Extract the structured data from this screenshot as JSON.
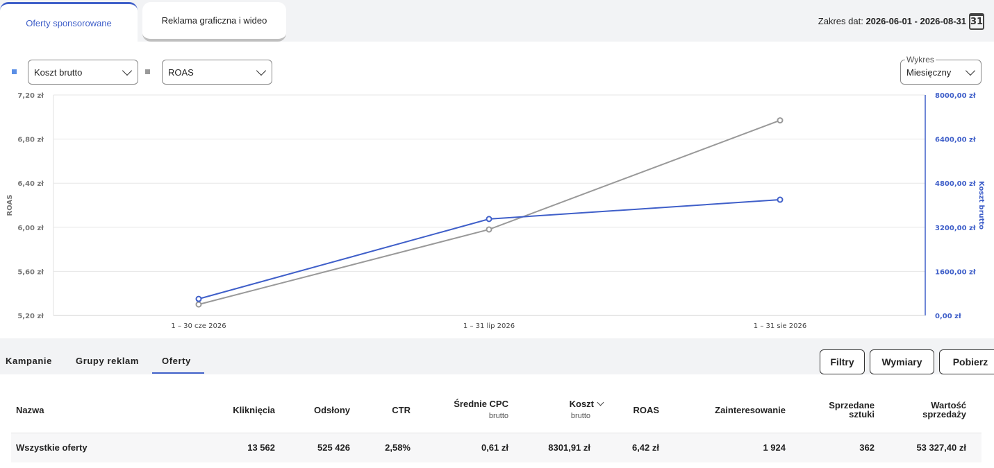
{
  "top_tabs": [
    {
      "label": "Oferty sponsorowane",
      "active": true
    },
    {
      "label": "Reklama graficzna i wideo",
      "active": false
    }
  ],
  "date_range": {
    "label": "Zakres dat:",
    "value": "2026-06-01 - 2026-08-31",
    "calendar_day": "31"
  },
  "metric_selects": {
    "first": {
      "value": "Koszt brutto",
      "legend_color": "#5b8fe6"
    },
    "second": {
      "value": "ROAS",
      "legend_color": "#999999"
    }
  },
  "chart_select": {
    "label": "Wykres",
    "value": "Miesięczny"
  },
  "colors": {
    "accent": "#3f5fc9",
    "roas_line": "#999999",
    "cost_line": "#3f5fc9"
  },
  "chart_data": {
    "type": "line",
    "categories": [
      "1 – 30 cze 2026",
      "1 – 31 lip 2026",
      "1 – 31 sie 2026"
    ],
    "y_left": {
      "title": "ROAS",
      "ticks": [
        "7,20 zł",
        "6,80 zł",
        "6,40 zł",
        "6,00 zł",
        "5,60 zł",
        "5,20 zł"
      ],
      "range": [
        5.2,
        7.2
      ]
    },
    "y_right": {
      "title": "Koszt brutto",
      "ticks": [
        "8000,00 zł",
        "6400,00 zł",
        "4800,00 zł",
        "3200,00 zł",
        "1600,00 zł",
        "0,00 zł"
      ],
      "range": [
        0,
        8000
      ]
    },
    "series": [
      {
        "name": "ROAS",
        "axis": "left",
        "color": "#999999",
        "values": [
          5.3,
          5.98,
          6.97
        ]
      },
      {
        "name": "Koszt brutto",
        "axis": "right",
        "color": "#3f5fc9",
        "values": [
          600,
          3500,
          4200
        ]
      }
    ],
    "grid": true
  },
  "sub_tabs": [
    {
      "label": "Kampanie",
      "active": false
    },
    {
      "label": "Grupy reklam",
      "active": false
    },
    {
      "label": "Oferty",
      "active": true
    }
  ],
  "buttons": {
    "filters": "Filtry",
    "dimensions": "Wymiary",
    "download": "Pobierz"
  },
  "table": {
    "headers": {
      "name": "Nazwa",
      "clicks": "Kliknięcia",
      "impressions": "Odsłony",
      "ctr": "CTR",
      "cpc": "Średnie CPC",
      "cpc_sub": "brutto",
      "cost": "Koszt",
      "cost_sub": "brutto",
      "roas": "ROAS",
      "interest": "Zainteresowanie",
      "sold": "Sprzedane sztuki",
      "sales": "Wartość sprzedaży"
    },
    "rows": [
      {
        "name": "Wszystkie oferty",
        "clicks": "13 562",
        "impressions": "525 426",
        "ctr": "2,58%",
        "cpc": "0,61 zł",
        "cost": "8301,91 zł",
        "roas": "6,42 zł",
        "interest": "1 924",
        "sold": "362",
        "sales": "53 327,40 zł"
      }
    ]
  }
}
